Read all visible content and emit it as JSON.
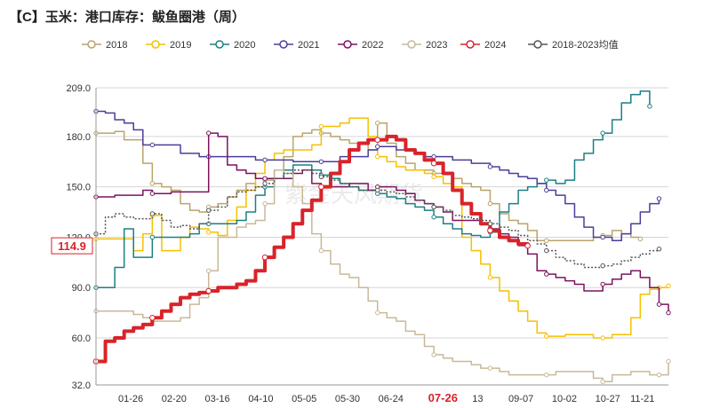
{
  "chart_data": {
    "type": "line",
    "title": "【C】玉米：港口库存：鲅鱼圈港（周）",
    "ylim": [
      32.0,
      209.0
    ],
    "yticks": [
      "32.0",
      "60.0",
      "90.0",
      "120.0",
      "150.0",
      "180.0",
      "209.0"
    ],
    "xticks": [
      "01-26",
      "02-20",
      "03-16",
      "04-10",
      "05-05",
      "05-30",
      "06-24",
      "07-26",
      "13",
      "09-07",
      "10-02",
      "10-27",
      "11-21"
    ],
    "highlight_x_label": "07-26",
    "highlight_value_label": "114.9",
    "watermark": "紫金天风期货",
    "legend": [
      "2018",
      "2019",
      "2020",
      "2021",
      "2022",
      "2023",
      "2024",
      "2018-2023均值"
    ],
    "series": [
      {
        "name": "2018",
        "color": "#b9a46a",
        "width": 1.5,
        "dash": "",
        "values": [
          182,
          182,
          183,
          178,
          178,
          164,
          152,
          150,
          148,
          140,
          136,
          135,
          138,
          140,
          144,
          148,
          152,
          150,
          154,
          160,
          168,
          180,
          182,
          184,
          182,
          180,
          178,
          176,
          176,
          172,
          188,
          176,
          168,
          164,
          160,
          160,
          158,
          158,
          155,
          152,
          150,
          148,
          140,
          134,
          130,
          128,
          124,
          118,
          118,
          118,
          118,
          118,
          118,
          120,
          121,
          124,
          122,
          120,
          119
        ]
      },
      {
        "name": "2019",
        "color": "#f5c000",
        "width": 1.5,
        "dash": "",
        "values": [
          119,
          119,
          119,
          119,
          112,
          122,
          133,
          112,
          112,
          120,
          126,
          125,
          123,
          121,
          130,
          138,
          148,
          158,
          166,
          170,
          172,
          172,
          172,
          175,
          186,
          186,
          188,
          191,
          191,
          180,
          168,
          165,
          162,
          160,
          160,
          158,
          156,
          152,
          150,
          120,
          112,
          104,
          96,
          88,
          82,
          76,
          70,
          63,
          61,
          61,
          62,
          62,
          62,
          60,
          60,
          62,
          62,
          72,
          86,
          89,
          90,
          91
        ]
      },
      {
        "name": "2020",
        "color": "#1b7f83",
        "width": 1.5,
        "dash": "",
        "values": [
          90,
          90,
          102,
          125,
          108,
          108,
          120,
          120,
          120,
          120,
          122,
          128,
          128,
          128,
          128,
          130,
          135,
          145,
          150,
          155,
          160,
          163,
          163,
          160,
          157,
          155,
          152,
          150,
          148,
          148,
          146,
          144,
          143,
          140,
          138,
          136,
          132,
          128,
          125,
          122,
          121,
          120,
          123,
          135,
          140,
          148,
          150,
          152,
          154,
          152,
          154,
          166,
          170,
          178,
          182,
          190,
          200,
          205,
          207,
          198
        ]
      },
      {
        "name": "2021",
        "color": "#4b3e9a",
        "width": 1.5,
        "dash": "",
        "values": [
          195,
          194,
          190,
          188,
          184,
          175,
          175,
          175,
          175,
          170,
          170,
          168,
          168,
          168,
          168,
          168,
          168,
          166,
          166,
          166,
          166,
          165,
          165,
          165,
          165,
          165,
          168,
          168,
          168,
          172,
          174,
          174,
          172,
          172,
          170,
          168,
          168,
          168,
          166,
          166,
          164,
          164,
          162,
          160,
          158,
          156,
          155,
          152,
          148,
          145,
          140,
          132,
          126,
          120,
          120,
          118,
          122,
          128,
          135,
          140,
          143
        ]
      },
      {
        "name": "2022",
        "color": "#7a1360",
        "width": 1.5,
        "dash": "",
        "values": [
          144,
          144,
          145,
          145,
          145,
          148,
          146,
          146,
          147,
          147,
          147,
          147,
          182,
          180,
          163,
          160,
          158,
          155,
          155,
          155,
          155,
          158,
          160,
          152,
          150,
          150,
          150,
          152,
          152,
          148,
          150,
          150,
          148,
          146,
          142,
          140,
          138,
          135,
          130,
          130,
          130,
          128,
          125,
          122,
          120,
          115,
          110,
          100,
          98,
          96,
          94,
          92,
          88,
          88,
          92,
          95,
          98,
          100,
          96,
          90,
          80,
          75
        ]
      },
      {
        "name": "2023",
        "color": "#c9b898",
        "width": 1.5,
        "dash": "",
        "values": [
          76,
          76,
          76,
          76,
          74,
          72,
          70,
          70,
          70,
          72,
          80,
          84,
          100,
          120,
          120,
          126,
          128,
          130,
          140,
          160,
          158,
          150,
          140,
          122,
          112,
          104,
          98,
          96,
          90,
          82,
          75,
          72,
          70,
          64,
          62,
          55,
          50,
          48,
          46,
          46,
          44,
          42,
          42,
          40,
          38,
          38,
          38,
          38,
          38,
          40,
          40,
          40,
          40,
          36,
          34,
          38,
          38,
          40,
          40,
          38,
          38,
          46
        ]
      },
      {
        "name": "2024",
        "color": "#d9232a",
        "width": 4,
        "dash": "",
        "values": [
          46,
          58,
          60,
          64,
          66,
          68,
          72,
          76,
          80,
          84,
          86,
          87,
          88,
          90,
          90,
          92,
          94,
          100,
          108,
          114,
          120,
          128,
          136,
          142,
          150,
          158,
          165,
          172,
          176,
          178,
          178,
          180,
          178,
          172,
          170,
          166,
          164,
          158,
          148,
          140,
          134,
          128,
          124,
          120,
          118,
          116,
          114.9
        ]
      },
      {
        "name": "2018-2023均值",
        "color": "#555555",
        "width": 1.5,
        "dash": "2,2",
        "values": [
          122,
          132,
          134,
          132,
          131,
          131,
          134,
          130,
          126,
          127,
          125,
          128,
          136,
          138,
          144,
          147,
          148,
          150,
          152,
          155,
          158,
          160,
          160,
          158,
          156,
          154,
          152,
          150,
          148,
          148,
          148,
          147,
          146,
          144,
          142,
          140,
          138,
          136,
          133,
          132,
          131,
          130,
          128,
          126,
          124,
          121,
          118,
          116,
          112,
          108,
          106,
          104,
          102,
          102,
          103,
          104,
          106,
          108,
          110,
          112,
          113
        ]
      }
    ]
  }
}
